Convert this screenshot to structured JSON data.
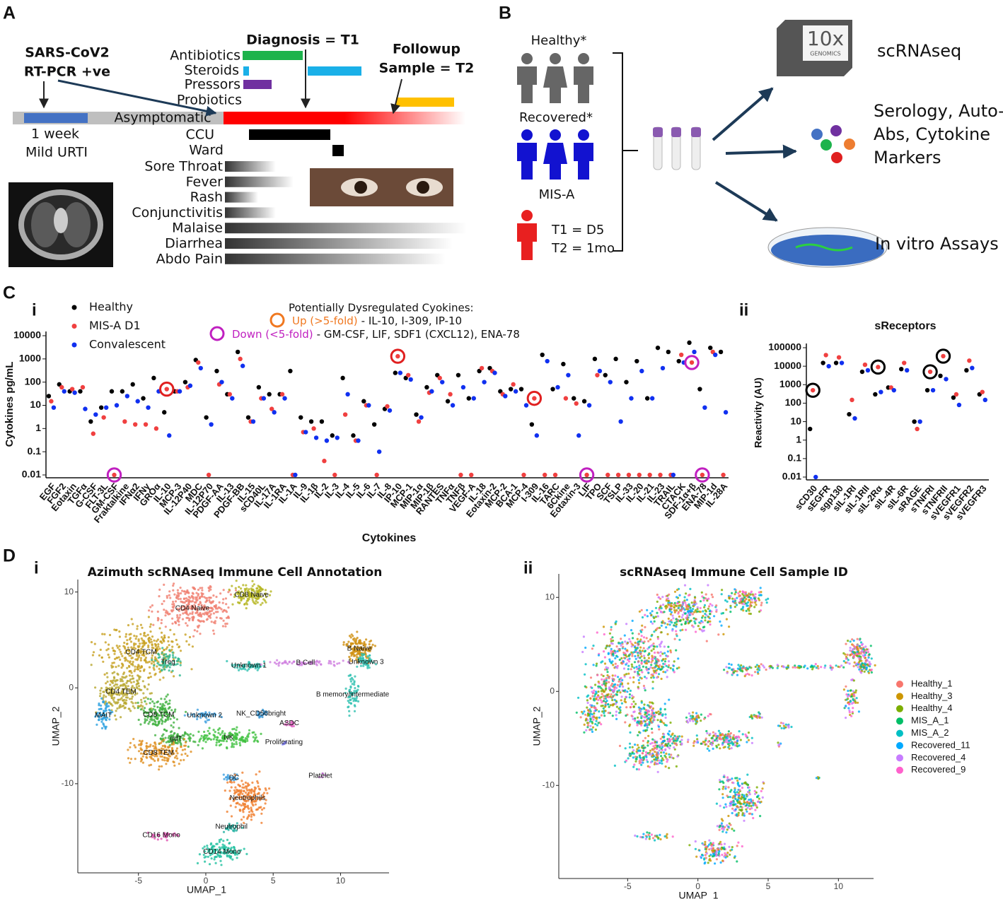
{
  "panel_a": {
    "label": "A",
    "test": [
      "SARS-CoV2",
      "RT-PCR +ve"
    ],
    "diagnosis": "Diagnosis = T1",
    "followup": [
      "Followup",
      "Sample = T2"
    ],
    "treatments": [
      "Antibiotics",
      "Steroids",
      "Pressors",
      "Probiotics"
    ],
    "asymptomatic": "Asymptomatic",
    "duration": "1 week",
    "prodrome": "Mild URTI",
    "care": [
      "CCU",
      "Ward"
    ],
    "symptoms": [
      "Sore Throat",
      "Fever",
      "Rash",
      "Conjunctivitis",
      "Malaise",
      "Diarrhea",
      "Abdo Pain"
    ]
  },
  "panel_b": {
    "label": "B",
    "groups": [
      "Healthy*",
      "Recovered*",
      "MIS-A"
    ],
    "timepoints": [
      "T1 = D5",
      "T2 = 1mo"
    ],
    "logo": [
      "10x",
      "GENOMICS"
    ],
    "assays": [
      "scRNAseq",
      "Serology, Auto-",
      "Abs, Cytokine",
      "Markers",
      "In vitro Assays"
    ]
  },
  "panel_c": {
    "label": "C"
  },
  "panel_d": {
    "label": "D"
  },
  "chart_data": [
    {
      "type": "scatter",
      "panel": "i",
      "log_scale": true,
      "ylabel": "Cytokines pg/mL",
      "xlabel": "Cytokines",
      "ylim": [
        0.01,
        10000
      ],
      "yticks": [
        0.01,
        0.1,
        1,
        10,
        100,
        1000,
        10000
      ],
      "categories": [
        "EGF",
        "FGF2",
        "Eotaxin",
        "TGFα",
        "G-CSF",
        "FLT-3L",
        "GM-CSF",
        "Fraktalkine",
        "IFNα2",
        "IFNγ",
        "GROα",
        "IL-10",
        "MCP-3",
        "IL-12P40",
        "MDC",
        "IL-12P70",
        "PDGF-AA",
        "IL-13",
        "PDGF-BB",
        "IL-15",
        "sCD40L",
        "IL-17A",
        "IL-1RA",
        "IL-1A",
        "IL-9",
        "IL-1β",
        "IL-2",
        "IL-3",
        "IL-4",
        "IL-5",
        "IL-6",
        "IL-7",
        "IL-8",
        "IP-10",
        "MCP-1",
        "MIP-1α",
        "MIP-1β",
        "RANTES",
        "TNFα",
        "TNFβ",
        "VEGF-A",
        "IL-18",
        "Eotaxin-2",
        "MCP-2",
        "BCA-1",
        "MCP-4",
        "I-309",
        "IL-16",
        "TARC",
        "6Ckine",
        "Eotaxin-3",
        "LIF",
        "TPO",
        "SCF",
        "TSLP",
        "IL-33",
        "IL-20",
        "IL-21",
        "IL-23",
        "TRAIL",
        "CTACK",
        "SDF-1α+β",
        "ENA-78",
        "MIP-1d",
        "IL-28A"
      ],
      "series": [
        {
          "name": "Healthy",
          "color": "#000000",
          "values": [
            25,
            80,
            40,
            40,
            2,
            8,
            40,
            40,
            80,
            20,
            150,
            5,
            40,
            100,
            900,
            3,
            300,
            30,
            2000,
            3,
            60,
            30,
            30,
            300,
            3,
            2,
            2,
            0.5,
            150,
            0.5,
            15,
            1.5,
            7,
            250,
            150,
            4,
            60,
            200,
            15,
            200,
            20,
            300,
            400,
            40,
            50,
            50,
            1.5,
            1500,
            50,
            600,
            20,
            15,
            1000,
            200,
            1000,
            100,
            800,
            20,
            3000,
            2000,
            800,
            5000,
            50,
            3000,
            2000
          ]
        },
        {
          "name": "MIS-A D1",
          "color": "#f04040",
          "values": [
            15,
            60,
            50,
            60,
            0.6,
            3,
            0.01,
            2,
            1.5,
            1.5,
            1,
            50,
            40,
            60,
            700,
            0.01,
            80,
            30,
            1000,
            2,
            20,
            7,
            30,
            0.01,
            0.7,
            1,
            0.04,
            0.01,
            4,
            0.3,
            10,
            0.01,
            9,
            1300,
            200,
            2,
            35,
            150,
            30,
            0.01,
            0.01,
            400,
            300,
            30,
            80,
            0.01,
            20,
            0.01,
            0.01,
            20,
            12,
            0.01,
            200,
            0.01,
            0.01,
            0.01,
            0.01,
            0.01,
            0.01,
            0.01,
            1500,
            700,
            0.01,
            2000,
            0.01
          ]
        },
        {
          "name": "Convalescent",
          "color": "#1030f0",
          "values": [
            8,
            40,
            35,
            7,
            4,
            8,
            10,
            25,
            15,
            8,
            40,
            0.5,
            40,
            70,
            400,
            1.5,
            100,
            20,
            500,
            2,
            20,
            5,
            20,
            0.01,
            0.7,
            0.4,
            0.3,
            0.4,
            30,
            0.3,
            10,
            0.1,
            6,
            250,
            130,
            3,
            40,
            100,
            10,
            60,
            20,
            100,
            250,
            25,
            40,
            10,
            0.5,
            800,
            60,
            200,
            0.5,
            10,
            300,
            100,
            2,
            20,
            300,
            20,
            400,
            0.01,
            700,
            2000,
            8,
            1500,
            5
          ]
        }
      ],
      "annotation": {
        "title": "Potentially Dysregulated Cyokines:",
        "up": {
          "label": "Up (>5-fold)",
          "list": "- IL-10, I-309, IP-10",
          "color": "#f07820"
        },
        "down": {
          "label": "Down (<5-fold)",
          "list": "- GM-CSF, LIF, SDF1 (CXCL12), ENA-78",
          "color": "#c020c0"
        }
      },
      "circled": [
        {
          "category": "IL-10",
          "series": "MIS-A D1",
          "color": "#e02020"
        },
        {
          "category": "IP-10",
          "series": "MIS-A D1",
          "color": "#e02020"
        },
        {
          "category": "I-309",
          "series": "MIS-A D1",
          "color": "#e02020"
        },
        {
          "category": "GM-CSF",
          "series": "MIS-A D1",
          "color": "#c020c0"
        },
        {
          "category": "LIF",
          "series": "MIS-A D1",
          "color": "#c020c0"
        },
        {
          "category": "SDF-1α+β",
          "series": "MIS-A D1",
          "color": "#c020c0"
        },
        {
          "category": "ENA-78",
          "series": "MIS-A D1",
          "color": "#c020c0"
        }
      ]
    },
    {
      "type": "scatter",
      "panel": "ii",
      "log_scale": true,
      "title": "sReceptors",
      "ylabel": "Reactivity (AU)",
      "ylim": [
        0.01,
        100000
      ],
      "yticks": [
        0.01,
        0.1,
        1,
        10,
        100,
        1000,
        10000,
        100000
      ],
      "categories": [
        "sCD30",
        "sEGFR",
        "sgp130",
        "sIL-1RI",
        "sIL-1RII",
        "sIL-2Rα",
        "sIL-4R",
        "sIL-6R",
        "sRAGE",
        "sTNFRI",
        "sTNFRII",
        "sVEGFR1",
        "sVEGFR2",
        "sVEGFR3"
      ],
      "series": [
        {
          "name": "Healthy",
          "color": "#000000",
          "values": [
            4,
            15000,
            15000,
            25,
            5000,
            300,
            700,
            7000,
            10,
            500,
            3000,
            200,
            6000,
            300
          ]
        },
        {
          "name": "MIS-A D1",
          "color": "#f04040",
          "values": [
            500,
            40000,
            30000,
            150,
            12000,
            9000,
            700,
            15000,
            4,
            5000,
            35000,
            300,
            20000,
            400
          ]
        },
        {
          "name": "Convalescent",
          "color": "#1030f0",
          "values": [
            0.01,
            10000,
            15000,
            15,
            6000,
            400,
            500,
            6000,
            10,
            500,
            2000,
            80,
            8000,
            150
          ]
        }
      ],
      "circled": [
        {
          "category": "sCD30",
          "series": "MIS-A D1",
          "color": "#000000"
        },
        {
          "category": "sIL-2Rα",
          "series": "MIS-A D1",
          "color": "#000000"
        },
        {
          "category": "sTNFRI",
          "series": "MIS-A D1",
          "color": "#000000"
        },
        {
          "category": "sTNFRII",
          "series": "MIS-A D1",
          "color": "#000000"
        }
      ]
    },
    {
      "type": "umap",
      "panel": "i",
      "title": "Azimuth scRNAseq Immune Cell Annotation",
      "xlabel": "UMAP_1",
      "ylabel": "UMAP_2",
      "xlim": [
        -9.5,
        13.6
      ],
      "ylim": [
        -19.3,
        11.3
      ],
      "xticks": [
        -5,
        0,
        5,
        10
      ],
      "yticks": [
        -10,
        0,
        10
      ],
      "clusters": [
        {
          "name": "CD4 Naive",
          "x": -1,
          "y": 8.3,
          "color": "#f08070"
        },
        {
          "name": "CD8 Naive",
          "x": 3.4,
          "y": 9.7,
          "color": "#b5b520"
        },
        {
          "name": "CD4 TCM",
          "x": -4.8,
          "y": 3.7,
          "color": "#c8a020"
        },
        {
          "name": "Treg",
          "x": -2.8,
          "y": 2.7,
          "color": "#30b890"
        },
        {
          "name": "Unknown 1",
          "x": 3.2,
          "y": 2.3,
          "color": "#30c0b0"
        },
        {
          "name": "B Cell",
          "x": 7.4,
          "y": 2.6,
          "color": "#d080e0"
        },
        {
          "name": "B Naive",
          "x": 11.4,
          "y": 4.1,
          "color": "#d09010"
        },
        {
          "name": "Unknown 3",
          "x": 11.9,
          "y": 2.7,
          "color": "#30c0b0"
        },
        {
          "name": "B memory/intermediate",
          "x": 10.9,
          "y": -0.7,
          "color": "#30c0b0"
        },
        {
          "name": "CD4 TEM",
          "x": -6.3,
          "y": -0.4,
          "color": "#b8a830"
        },
        {
          "name": "MAIT",
          "x": -7.6,
          "y": -2.9,
          "color": "#2aa0e0"
        },
        {
          "name": "CD8 TCM",
          "x": -3.5,
          "y": -2.8,
          "color": "#40b040"
        },
        {
          "name": "Unknown 2",
          "x": -0.1,
          "y": -2.9,
          "color": "#40a0e0"
        },
        {
          "name": "NK_CD56bright",
          "x": 4.1,
          "y": -2.7,
          "color": "#3090d0"
        },
        {
          "name": "ASDC",
          "x": 6.2,
          "y": -3.7,
          "color": "#e060c0"
        },
        {
          "name": "Proliferating",
          "x": 5.8,
          "y": -5.7,
          "color": "#8080ff"
        },
        {
          "name": "gdT",
          "x": -2.2,
          "y": -5.3,
          "color": "#40b040"
        },
        {
          "name": "NK",
          "x": 1.7,
          "y": -5.2,
          "color": "#40c040"
        },
        {
          "name": "CD8 TEM",
          "x": -3.5,
          "y": -6.8,
          "color": "#e09020"
        },
        {
          "name": "DC",
          "x": 2.1,
          "y": -9.4,
          "color": "#40a0e0"
        },
        {
          "name": "Neutrophils",
          "x": 3.1,
          "y": -11.5,
          "color": "#f08030"
        },
        {
          "name": "Platelet",
          "x": 8.5,
          "y": -9.2,
          "color": "#c070d0"
        },
        {
          "name": "Neutrophil",
          "x": 1.9,
          "y": -14.5,
          "color": "#20b0a0"
        },
        {
          "name": "CD16 Mono",
          "x": -3.3,
          "y": -15.4,
          "color": "#e050b0"
        },
        {
          "name": "CD14 Mono",
          "x": 1.2,
          "y": -17.1,
          "color": "#20c0a0"
        }
      ]
    },
    {
      "type": "umap",
      "panel": "ii",
      "title": "scRNAseq Immune Cell Sample ID",
      "xlabel": "UMAP_1",
      "ylabel": "UMAP_2",
      "xlim": [
        -9.9,
        12.5
      ],
      "ylim": [
        -19.9,
        12.5
      ],
      "xticks": [
        -5,
        0,
        5,
        10
      ],
      "yticks": [
        -10,
        0,
        10
      ],
      "legend": [
        {
          "name": "Healthy_1",
          "color": "#f8766d"
        },
        {
          "name": "Healthy_3",
          "color": "#cd9600"
        },
        {
          "name": "Healthy_4",
          "color": "#7cae00"
        },
        {
          "name": "MIS_A_1",
          "color": "#00be67"
        },
        {
          "name": "MIS_A_2",
          "color": "#00bfc4"
        },
        {
          "name": "Recovered_11",
          "color": "#00a9ff"
        },
        {
          "name": "Recovered_4",
          "color": "#c77cff"
        },
        {
          "name": "Recovered_9",
          "color": "#ff61cc"
        }
      ]
    }
  ]
}
